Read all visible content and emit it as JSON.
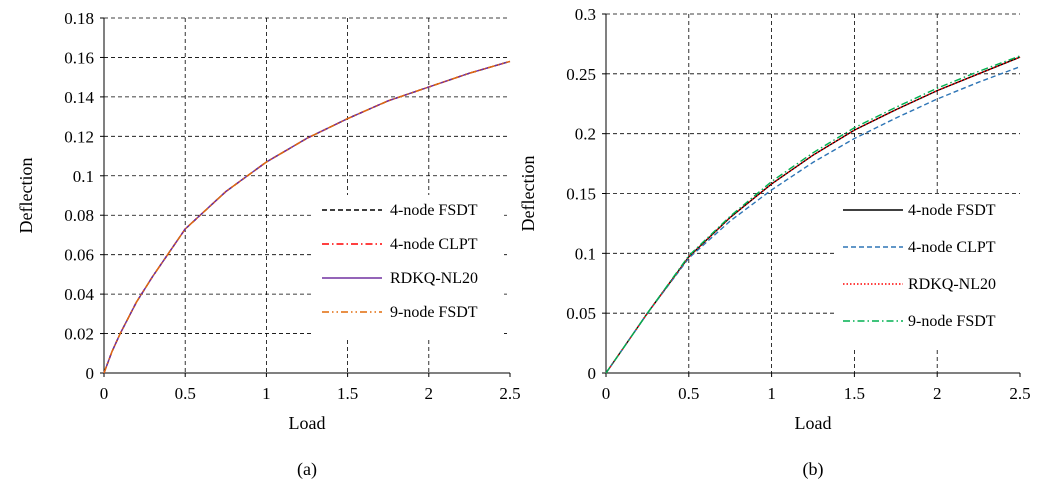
{
  "chart_data": [
    {
      "panel_label": "(a)",
      "type": "line",
      "xlabel": "Load",
      "ylabel": "Deflection",
      "xlim": [
        0,
        2.5
      ],
      "ylim": [
        0,
        0.18
      ],
      "xticks": [
        "0",
        "0.5",
        "1",
        "1.5",
        "2",
        "2.5"
      ],
      "yticks": [
        "0",
        "0.02",
        "0.04",
        "0.06",
        "0.08",
        "0.1",
        "0.12",
        "0.14",
        "0.16",
        "0.18"
      ],
      "grid": true,
      "grid_style": "dashed",
      "legend_position": "bottom-right",
      "series": [
        {
          "name": "4-node FSDT",
          "color": "#000000",
          "style": "dashed",
          "x": [
            0,
            0.05,
            0.1,
            0.2,
            0.3,
            0.5,
            0.75,
            1.0,
            1.25,
            1.5,
            1.75,
            2.0,
            2.25,
            2.5
          ],
          "y": [
            0,
            0.011,
            0.02,
            0.036,
            0.049,
            0.073,
            0.092,
            0.107,
            0.119,
            0.129,
            0.138,
            0.145,
            0.152,
            0.158
          ]
        },
        {
          "name": "4-node CLPT",
          "color": "#ff0000",
          "style": "dashdot",
          "x": [
            0,
            0.05,
            0.1,
            0.2,
            0.3,
            0.5,
            0.75,
            1.0,
            1.25,
            1.5,
            1.75,
            2.0,
            2.25,
            2.5
          ],
          "y": [
            0,
            0.011,
            0.02,
            0.036,
            0.049,
            0.073,
            0.092,
            0.107,
            0.119,
            0.129,
            0.138,
            0.145,
            0.152,
            0.158
          ]
        },
        {
          "name": "RDKQ-NL20",
          "color": "#7030a0",
          "style": "solid",
          "x": [
            0,
            0.05,
            0.1,
            0.2,
            0.3,
            0.5,
            0.75,
            1.0,
            1.25,
            1.5,
            1.75,
            2.0,
            2.25,
            2.5
          ],
          "y": [
            0,
            0.011,
            0.02,
            0.036,
            0.049,
            0.073,
            0.092,
            0.107,
            0.119,
            0.129,
            0.138,
            0.145,
            0.152,
            0.158
          ]
        },
        {
          "name": "9-node FSDT",
          "color": "#e26b0a",
          "style": "dashdotdot",
          "x": [
            0,
            0.05,
            0.1,
            0.2,
            0.3,
            0.5,
            0.75,
            1.0,
            1.25,
            1.5,
            1.75,
            2.0,
            2.25,
            2.5
          ],
          "y": [
            0,
            0.011,
            0.02,
            0.036,
            0.049,
            0.073,
            0.092,
            0.107,
            0.119,
            0.129,
            0.138,
            0.145,
            0.152,
            0.158
          ]
        }
      ]
    },
    {
      "panel_label": "(b)",
      "type": "line",
      "xlabel": "Load",
      "ylabel": "Deflection",
      "xlim": [
        0,
        2.5
      ],
      "ylim": [
        0,
        0.3
      ],
      "xticks": [
        "0",
        "0.5",
        "1",
        "1.5",
        "2",
        "2.5"
      ],
      "yticks": [
        "0",
        "0.05",
        "0.1",
        "0.15",
        "0.2",
        "0.25",
        "0.3"
      ],
      "grid": true,
      "grid_style": "dashed",
      "legend_position": "bottom-right",
      "series": [
        {
          "name": "4-node FSDT",
          "color": "#000000",
          "style": "solid",
          "x": [
            0,
            0.1,
            0.25,
            0.5,
            0.75,
            1.0,
            1.25,
            1.5,
            1.75,
            2.0,
            2.25,
            2.5
          ],
          "y": [
            0,
            0.02,
            0.05,
            0.097,
            0.13,
            0.158,
            0.182,
            0.203,
            0.22,
            0.236,
            0.25,
            0.264
          ]
        },
        {
          "name": "4-node CLPT",
          "color": "#2e75b6",
          "style": "dashed",
          "x": [
            0,
            0.1,
            0.25,
            0.5,
            0.75,
            1.0,
            1.25,
            1.5,
            1.75,
            2.0,
            2.25,
            2.5
          ],
          "y": [
            0,
            0.02,
            0.05,
            0.096,
            0.127,
            0.153,
            0.176,
            0.196,
            0.213,
            0.229,
            0.243,
            0.256
          ]
        },
        {
          "name": "RDKQ-NL20",
          "color": "#ff0000",
          "style": "dotted",
          "x": [
            0,
            0.1,
            0.25,
            0.5,
            0.75,
            1.0,
            1.25,
            1.5,
            1.75,
            2.0,
            2.25,
            2.5
          ],
          "y": [
            0,
            0.02,
            0.05,
            0.097,
            0.13,
            0.158,
            0.182,
            0.203,
            0.22,
            0.236,
            0.25,
            0.264
          ]
        },
        {
          "name": "9-node FSDT",
          "color": "#00b050",
          "style": "dashdot",
          "x": [
            0,
            0.1,
            0.25,
            0.5,
            0.75,
            1.0,
            1.25,
            1.5,
            1.75,
            2.0,
            2.25,
            2.5
          ],
          "y": [
            0,
            0.02,
            0.05,
            0.098,
            0.131,
            0.16,
            0.184,
            0.205,
            0.222,
            0.238,
            0.252,
            0.265
          ]
        }
      ]
    }
  ]
}
